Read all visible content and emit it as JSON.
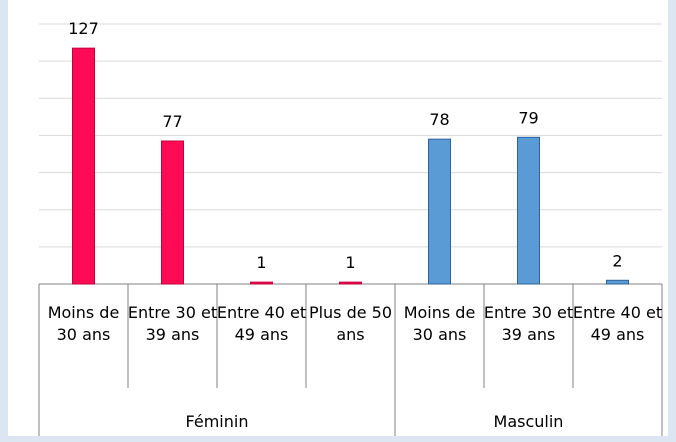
{
  "chart_data": {
    "type": "bar",
    "groups": [
      {
        "name": "Féminin",
        "color": "#ff0a54",
        "stroke": "#c0003a",
        "categories": [
          "Moins de 30 ans",
          "Entre 30 et 39 ans",
          "Entre 40 et 49 ans",
          "Plus de 50 ans"
        ],
        "values": [
          127,
          77,
          1,
          1
        ]
      },
      {
        "name": "Masculin",
        "color": "#5b9bd5",
        "stroke": "#2f6399",
        "categories": [
          "Moins de 30 ans",
          "Entre 30 et 39 ans",
          "Entre 40 et 49 ans"
        ],
        "values": [
          78,
          79,
          2
        ]
      }
    ],
    "ylim": [
      0,
      140
    ],
    "yticks": [
      0,
      20,
      40,
      60,
      80,
      100,
      120,
      140
    ],
    "grid": true
  }
}
